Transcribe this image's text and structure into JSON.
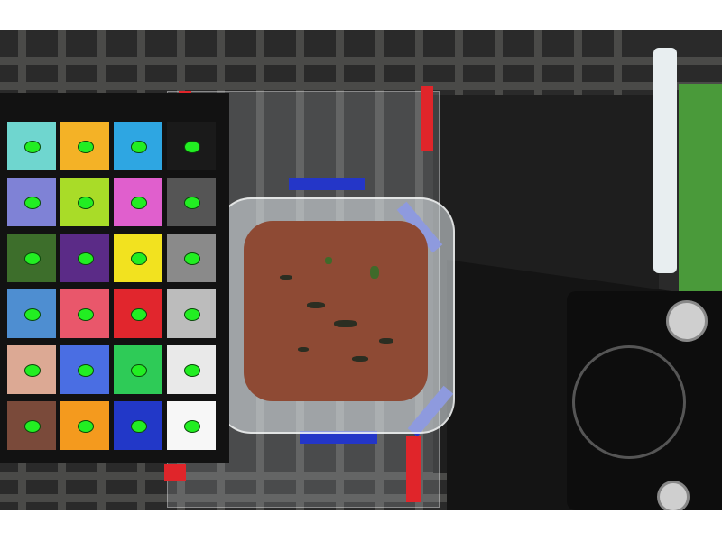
{
  "image": {
    "description_words_visible": false
  },
  "colors": {
    "background": "#ffffff",
    "soil": "#8e4a34",
    "marker_dot": "#22ee22",
    "tape_red": "#e0252a",
    "tape_blue": "#2436c8"
  },
  "color_checker": {
    "rows": [
      [
        "#6fd6cf",
        "#f4b226",
        "#2ea6e2",
        "#1a1a1a"
      ],
      [
        "#7f82d6",
        "#a9dc28",
        "#e05fcd",
        "#555555"
      ],
      [
        "#3d6e2b",
        "#5b2b87",
        "#f2e21f",
        "#8a8a8a"
      ],
      [
        "#4e8ed1",
        "#e9576b",
        "#e1262d",
        "#bcbcbc"
      ],
      [
        "#dca994",
        "#4a6ee3",
        "#2ecb57",
        "#e9e9e9"
      ],
      [
        "#7a4a3a",
        "#f49a1e",
        "#2238c8",
        "#f7f7f7"
      ]
    ]
  },
  "icons": [
    "grate",
    "color-checker",
    "plastic-bag",
    "soil-container",
    "camera-lens"
  ]
}
